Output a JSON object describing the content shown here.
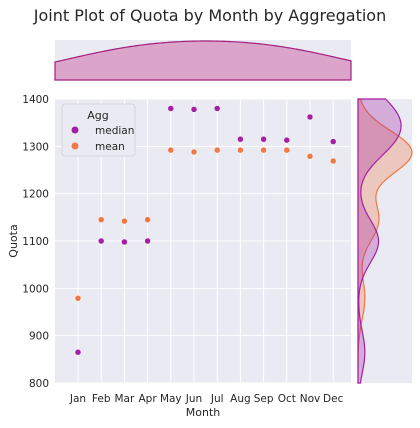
{
  "chart_data": {
    "type": "scatter",
    "title": "Joint Plot of Quota by Month by Aggregation",
    "xlabel": "Month",
    "ylabel": "Quota",
    "categories": [
      "Jan",
      "Feb",
      "Mar",
      "Apr",
      "May",
      "Jun",
      "Jul",
      "Aug",
      "Sep",
      "Oct",
      "Nov",
      "Dec"
    ],
    "ylim": [
      800,
      1400
    ],
    "yticks": [
      800,
      900,
      1000,
      1100,
      1200,
      1300,
      1400
    ],
    "grid": true,
    "legend": {
      "title": "Agg",
      "placement": "top-left"
    },
    "series": [
      {
        "name": "median",
        "color": "#a31fa3",
        "values": [
          865,
          1100,
          1098,
          1100,
          1380,
          1378,
          1380,
          1315,
          1315,
          1313,
          1362,
          1310
        ]
      },
      {
        "name": "mean",
        "color": "#f07845",
        "values": [
          979,
          1145,
          1142,
          1145,
          1292,
          1288,
          1292,
          1292,
          1292,
          1292,
          1279,
          1269
        ]
      }
    ],
    "marginals": {
      "top": {
        "type": "kde",
        "color": "#c74f9c"
      },
      "right": {
        "type": "kde",
        "colors": [
          "#a31fa3",
          "#f07845"
        ]
      }
    }
  }
}
